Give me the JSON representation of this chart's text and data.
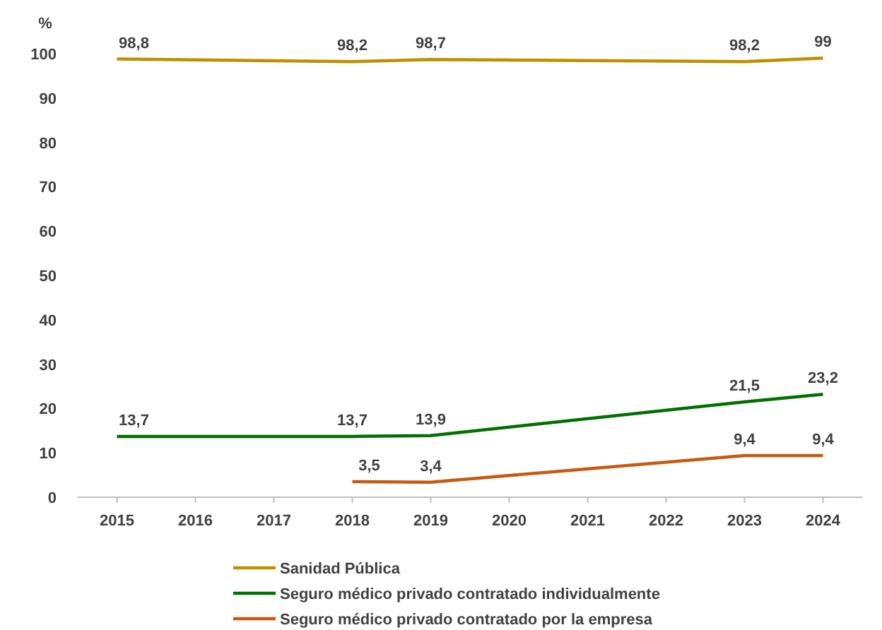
{
  "chart_data": {
    "type": "line",
    "ylabel": "%",
    "xlim": [
      2014.5,
      2024.5
    ],
    "xticks": [
      2015,
      2016,
      2017,
      2018,
      2019,
      2020,
      2021,
      2022,
      2023,
      2024
    ],
    "ylim": [
      0,
      100
    ],
    "yticks": [
      0,
      10,
      20,
      30,
      40,
      50,
      60,
      70,
      80,
      90,
      100
    ],
    "grid": false,
    "legend": "bottom",
    "marker": "none",
    "series": [
      {
        "name": "Sanidad Pública",
        "color": "#bf9000",
        "x": [
          2015,
          2018,
          2019,
          2023,
          2024
        ],
        "values": [
          98.8,
          98.2,
          98.7,
          98.2,
          99
        ],
        "value_labels": [
          "98,8",
          "98,2",
          "98,7",
          "98,2",
          "99"
        ]
      },
      {
        "name": "Seguro médico privado contratado individualmente",
        "color": "#007000",
        "x": [
          2015,
          2018,
          2019,
          2023,
          2024
        ],
        "values": [
          13.7,
          13.7,
          13.9,
          21.5,
          23.2
        ],
        "value_labels": [
          "13,7",
          "13,7",
          "13,9",
          "21,5",
          "23,2"
        ]
      },
      {
        "name": "Seguro médico privado contratado por la empresa",
        "color": "#c55a11",
        "x": [
          2018,
          2019,
          2023,
          2024
        ],
        "values": [
          3.5,
          3.4,
          9.4,
          9.4
        ],
        "value_labels": [
          "3,5",
          "3,4",
          "9,4",
          "9,4"
        ]
      }
    ]
  }
}
